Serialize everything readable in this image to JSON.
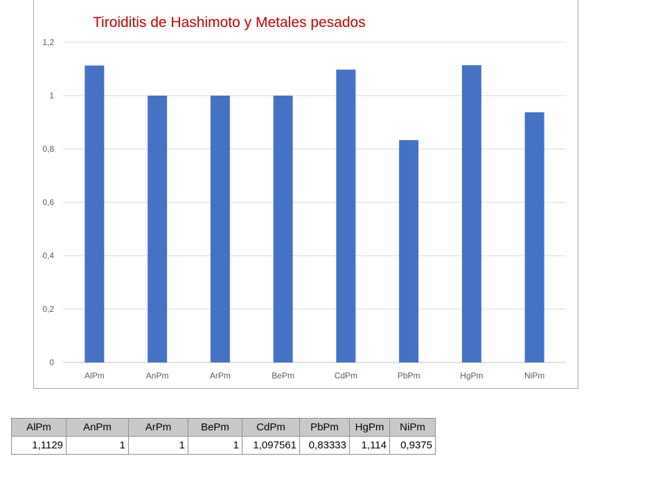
{
  "chart_data": {
    "type": "bar",
    "title": "Tiroiditis de Hashimoto y Metales pesados",
    "categories": [
      "AlPm",
      "AnPm",
      "ArPm",
      "BePm",
      "CdPm",
      "PbPm",
      "HgPm",
      "NiPm"
    ],
    "values": [
      1.1129,
      1,
      1,
      1,
      1.097561,
      0.83333,
      1.114,
      0.9375
    ],
    "ylim": [
      0,
      1.2
    ],
    "yticks": [
      "0",
      "0,2",
      "0,4",
      "0,6",
      "0,8",
      "1",
      "1,2"
    ],
    "xlabel": "",
    "ylabel": "",
    "grid": true,
    "legend": "none",
    "bar_color": "#4472c4",
    "title_color": "#c00000"
  },
  "table": {
    "headers": [
      "AlPm",
      "AnPm",
      "ArPm",
      "BePm",
      "CdPm",
      "PbPm",
      "HgPm",
      "NiPm"
    ],
    "row": [
      "1,1129",
      "1",
      "1",
      "1",
      "1,097561",
      "0,83333",
      "1,114",
      "0,9375"
    ]
  }
}
